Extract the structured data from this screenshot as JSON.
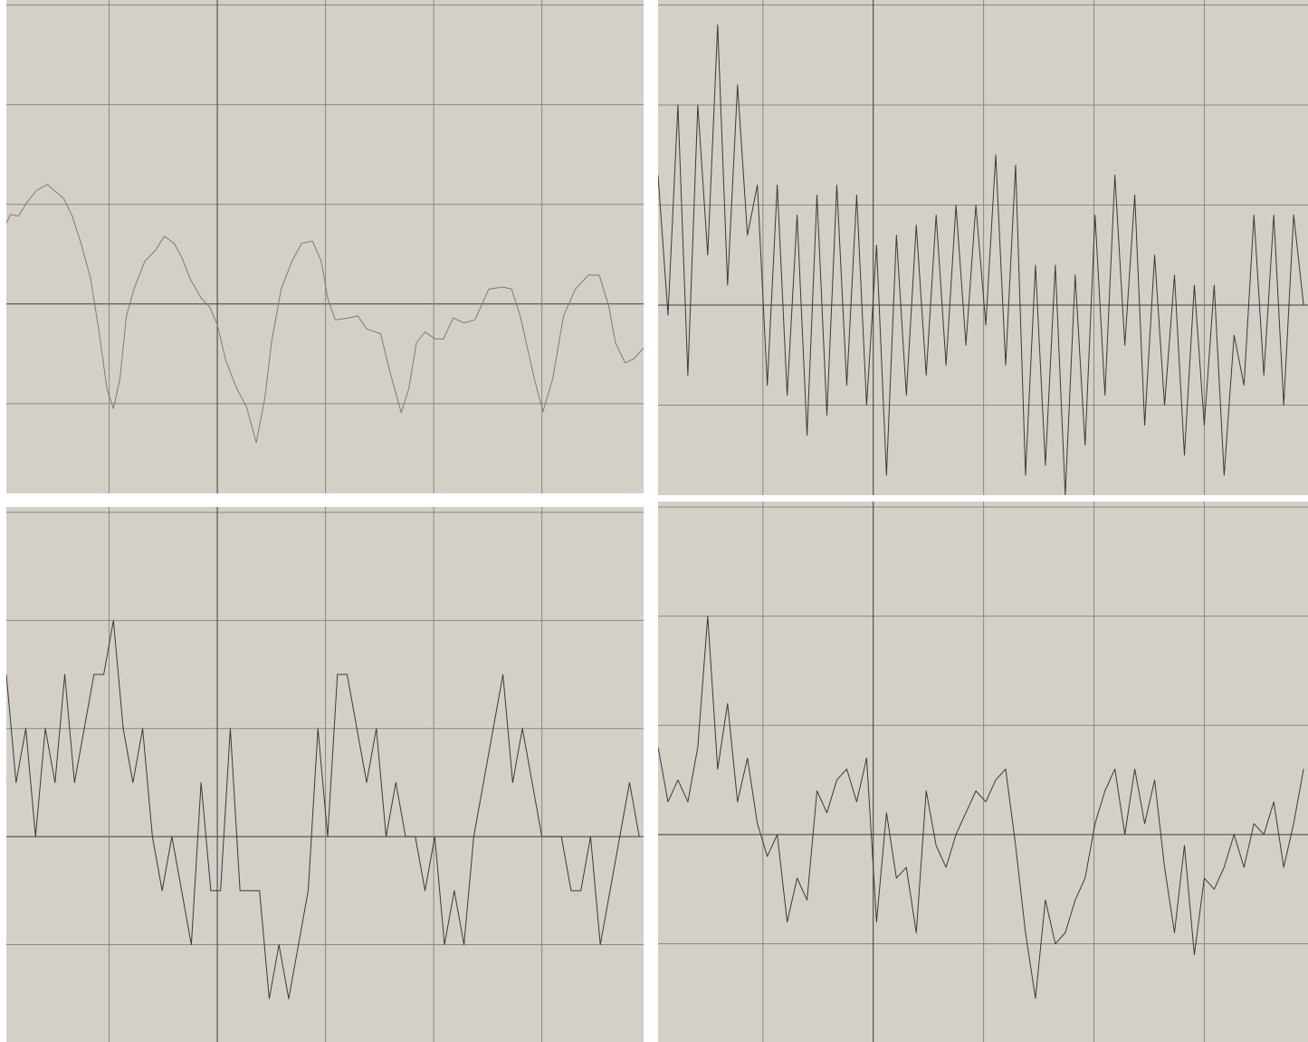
{
  "chart_data": [
    {
      "type": "line",
      "color": "#7c7c7c",
      "grid": true,
      "xlim": [
        -1.95,
        3.94
      ],
      "ylim": [
        -1.9,
        3.05
      ],
      "xticks": [
        -1,
        0,
        1,
        2,
        3
      ],
      "yticks": [
        -1,
        0,
        1,
        2,
        3
      ],
      "x": [
        -1.95,
        -1.91,
        -1.84,
        -1.76,
        -1.67,
        -1.57,
        -1.51,
        -1.42,
        -1.34,
        -1.26,
        -1.17,
        -1.09,
        -1.02,
        -0.96,
        -0.9,
        -0.84,
        -0.77,
        -0.67,
        -0.57,
        -0.49,
        -0.4,
        -0.33,
        -0.25,
        -0.15,
        -0.07,
        0,
        0.08,
        0.18,
        0.27,
        0.36,
        0.44,
        0.5,
        0.59,
        0.69,
        0.78,
        0.88,
        0.96,
        1.02,
        1.09,
        1.21,
        1.3,
        1.38,
        1.51,
        1.59,
        1.7,
        1.77,
        1.84,
        1.92,
        2.01,
        2.09,
        2.18,
        2.28,
        2.38,
        2.51,
        2.64,
        2.72,
        2.8,
        2.93,
        3.01,
        3.1,
        3.2,
        3.31,
        3.43,
        3.53,
        3.62,
        3.68,
        3.77,
        3.85,
        3.94
      ],
      "values": [
        0.81,
        0.9,
        0.88,
        1.02,
        1.14,
        1.2,
        1.14,
        1.06,
        0.88,
        0.61,
        0.25,
        -0.3,
        -0.85,
        -1.05,
        -0.75,
        -0.12,
        0.15,
        0.43,
        0.54,
        0.68,
        0.61,
        0.47,
        0.25,
        0.06,
        -0.03,
        -0.21,
        -0.57,
        -0.85,
        -1.03,
        -1.39,
        -0.94,
        -0.39,
        0.15,
        0.43,
        0.61,
        0.63,
        0.43,
        0.06,
        -0.16,
        -0.14,
        -0.12,
        -0.25,
        -0.3,
        -0.66,
        -1.09,
        -0.85,
        -0.39,
        -0.28,
        -0.35,
        -0.35,
        -0.14,
        -0.19,
        -0.16,
        0.15,
        0.17,
        0.15,
        -0.12,
        -0.75,
        -1.08,
        -0.75,
        -0.12,
        0.15,
        0.29,
        0.29,
        -0.03,
        -0.39,
        -0.59,
        -0.55,
        -0.44
      ]
    },
    {
      "type": "line",
      "color": "#3a3a3a",
      "grid": true,
      "xlim": [
        -1.95,
        3.94
      ],
      "ylim": [
        -1.9,
        3.05
      ],
      "xticks": [
        -1,
        0,
        1,
        2,
        3
      ],
      "yticks": [
        -1,
        0,
        1,
        2,
        3
      ],
      "x": [
        -1.95,
        -1.86,
        -1.77,
        -1.68,
        -1.59,
        -1.5,
        -1.41,
        -1.32,
        -1.23,
        -1.14,
        -1.05,
        -0.96,
        -0.87,
        -0.78,
        -0.69,
        -0.6,
        -0.51,
        -0.42,
        -0.33,
        -0.24,
        -0.15,
        -0.06,
        0.03,
        0.12,
        0.21,
        0.3,
        0.39,
        0.48,
        0.57,
        0.66,
        0.75,
        0.84,
        0.93,
        1.02,
        1.11,
        1.2,
        1.29,
        1.38,
        1.47,
        1.56,
        1.65,
        1.74,
        1.83,
        1.92,
        2.01,
        2.1,
        2.19,
        2.28,
        2.37,
        2.46,
        2.55,
        2.64,
        2.73,
        2.82,
        2.91,
        3.0,
        3.09,
        3.18,
        3.27,
        3.36,
        3.45,
        3.54,
        3.63,
        3.72,
        3.81,
        3.9
      ],
      "values": [
        1.3,
        -0.1,
        2.0,
        -0.7,
        2.0,
        0.5,
        2.8,
        0.2,
        2.2,
        0.7,
        1.2,
        -0.8,
        1.2,
        -0.9,
        0.9,
        -1.3,
        1.1,
        -1.1,
        1.2,
        -0.8,
        1.1,
        -1.0,
        0.6,
        -1.7,
        0.7,
        -0.9,
        0.8,
        -0.7,
        0.9,
        -0.6,
        1.0,
        -0.4,
        1.0,
        -0.2,
        1.5,
        -0.6,
        1.4,
        -1.7,
        0.4,
        -1.6,
        0.4,
        -1.9,
        0.3,
        -1.4,
        0.9,
        -0.9,
        1.3,
        -0.4,
        1.1,
        -1.2,
        0.5,
        -1.0,
        0.3,
        -1.5,
        0.2,
        -1.2,
        0.2,
        -1.7,
        -0.3,
        -0.8,
        0.9,
        -0.7,
        0.9,
        -1.0,
        0.9,
        0.0
      ]
    },
    {
      "type": "line",
      "color": "#3a3a3a",
      "grid": true,
      "xlim": [
        -1.95,
        3.94
      ],
      "ylim": [
        -1.9,
        3.05
      ],
      "xticks": [
        -1,
        0,
        1,
        2,
        3
      ],
      "yticks": [
        -1,
        0,
        1,
        2,
        3
      ],
      "x": [
        -1.95,
        -1.86,
        -1.77,
        -1.68,
        -1.59,
        -1.5,
        -1.41,
        -1.32,
        -1.23,
        -1.14,
        -1.05,
        -0.96,
        -0.87,
        -0.78,
        -0.69,
        -0.6,
        -0.51,
        -0.42,
        -0.33,
        -0.24,
        -0.15,
        -0.06,
        0.03,
        0.12,
        0.21,
        0.3,
        0.39,
        0.48,
        0.57,
        0.66,
        0.75,
        0.84,
        0.93,
        1.02,
        1.11,
        1.2,
        1.29,
        1.38,
        1.47,
        1.56,
        1.65,
        1.74,
        1.83,
        1.92,
        2.01,
        2.1,
        2.19,
        2.28,
        2.37,
        2.46,
        2.55,
        2.64,
        2.73,
        2.82,
        2.91,
        3.0,
        3.09,
        3.18,
        3.27,
        3.36,
        3.45,
        3.54,
        3.63,
        3.72,
        3.81,
        3.9
      ],
      "values": [
        1.5,
        0.5,
        1,
        0,
        1,
        0.5,
        1.5,
        0.5,
        1,
        1.5,
        1.5,
        2,
        1,
        0.5,
        1,
        0,
        -0.5,
        0,
        -0.5,
        -1,
        0.5,
        -0.5,
        -0.5,
        1,
        -0.5,
        -0.5,
        -0.5,
        -1.5,
        -1,
        -1.5,
        -1,
        -0.5,
        1,
        0,
        1.5,
        1.5,
        1,
        0.5,
        1,
        0,
        0.5,
        0,
        0,
        -0.5,
        0,
        -1,
        -0.5,
        -1,
        0,
        0.5,
        1,
        1.5,
        0.5,
        1,
        0.5,
        0,
        0,
        0,
        -0.5,
        -0.5,
        0,
        -1,
        -0.5,
        0,
        0.5,
        0
      ]
    },
    {
      "type": "line",
      "color": "#3a3a3a",
      "grid": true,
      "xlim": [
        -1.95,
        3.94
      ],
      "ylim": [
        -1.9,
        3.05
      ],
      "xticks": [
        -1,
        0,
        1,
        2,
        3
      ],
      "yticks": [
        -1,
        0,
        1,
        2,
        3
      ],
      "x": [
        -1.95,
        -1.86,
        -1.77,
        -1.68,
        -1.59,
        -1.5,
        -1.41,
        -1.32,
        -1.23,
        -1.14,
        -1.05,
        -0.96,
        -0.87,
        -0.78,
        -0.69,
        -0.6,
        -0.51,
        -0.42,
        -0.33,
        -0.24,
        -0.15,
        -0.06,
        0.03,
        0.12,
        0.21,
        0.3,
        0.39,
        0.48,
        0.57,
        0.66,
        0.75,
        0.84,
        0.93,
        1.02,
        1.11,
        1.2,
        1.29,
        1.38,
        1.47,
        1.56,
        1.65,
        1.74,
        1.83,
        1.92,
        2.01,
        2.1,
        2.19,
        2.28,
        2.37,
        2.46,
        2.55,
        2.64,
        2.73,
        2.82,
        2.91,
        3.0,
        3.09,
        3.18,
        3.27,
        3.36,
        3.45,
        3.54,
        3.63,
        3.72,
        3.81,
        3.9
      ],
      "values": [
        0.8,
        0.3,
        0.5,
        0.3,
        0.8,
        2.0,
        0.6,
        1.2,
        0.3,
        0.7,
        0.1,
        -0.2,
        0.0,
        -0.8,
        -0.4,
        -0.6,
        0.4,
        0.2,
        0.5,
        0.6,
        0.3,
        0.7,
        -0.8,
        0.2,
        -0.4,
        -0.3,
        -0.9,
        0.4,
        -0.1,
        -0.3,
        0.0,
        0.2,
        0.4,
        0.3,
        0.5,
        0.6,
        -0.1,
        -0.9,
        -1.5,
        -0.6,
        -1.0,
        -0.9,
        -0.6,
        -0.4,
        0.1,
        0.4,
        0.6,
        0.0,
        0.6,
        0.1,
        0.5,
        -0.3,
        -0.9,
        -0.1,
        -1.1,
        -0.4,
        -0.5,
        -0.3,
        0.0,
        -0.3,
        0.1,
        0.0,
        0.3,
        -0.3,
        0.1,
        0.6
      ]
    }
  ]
}
